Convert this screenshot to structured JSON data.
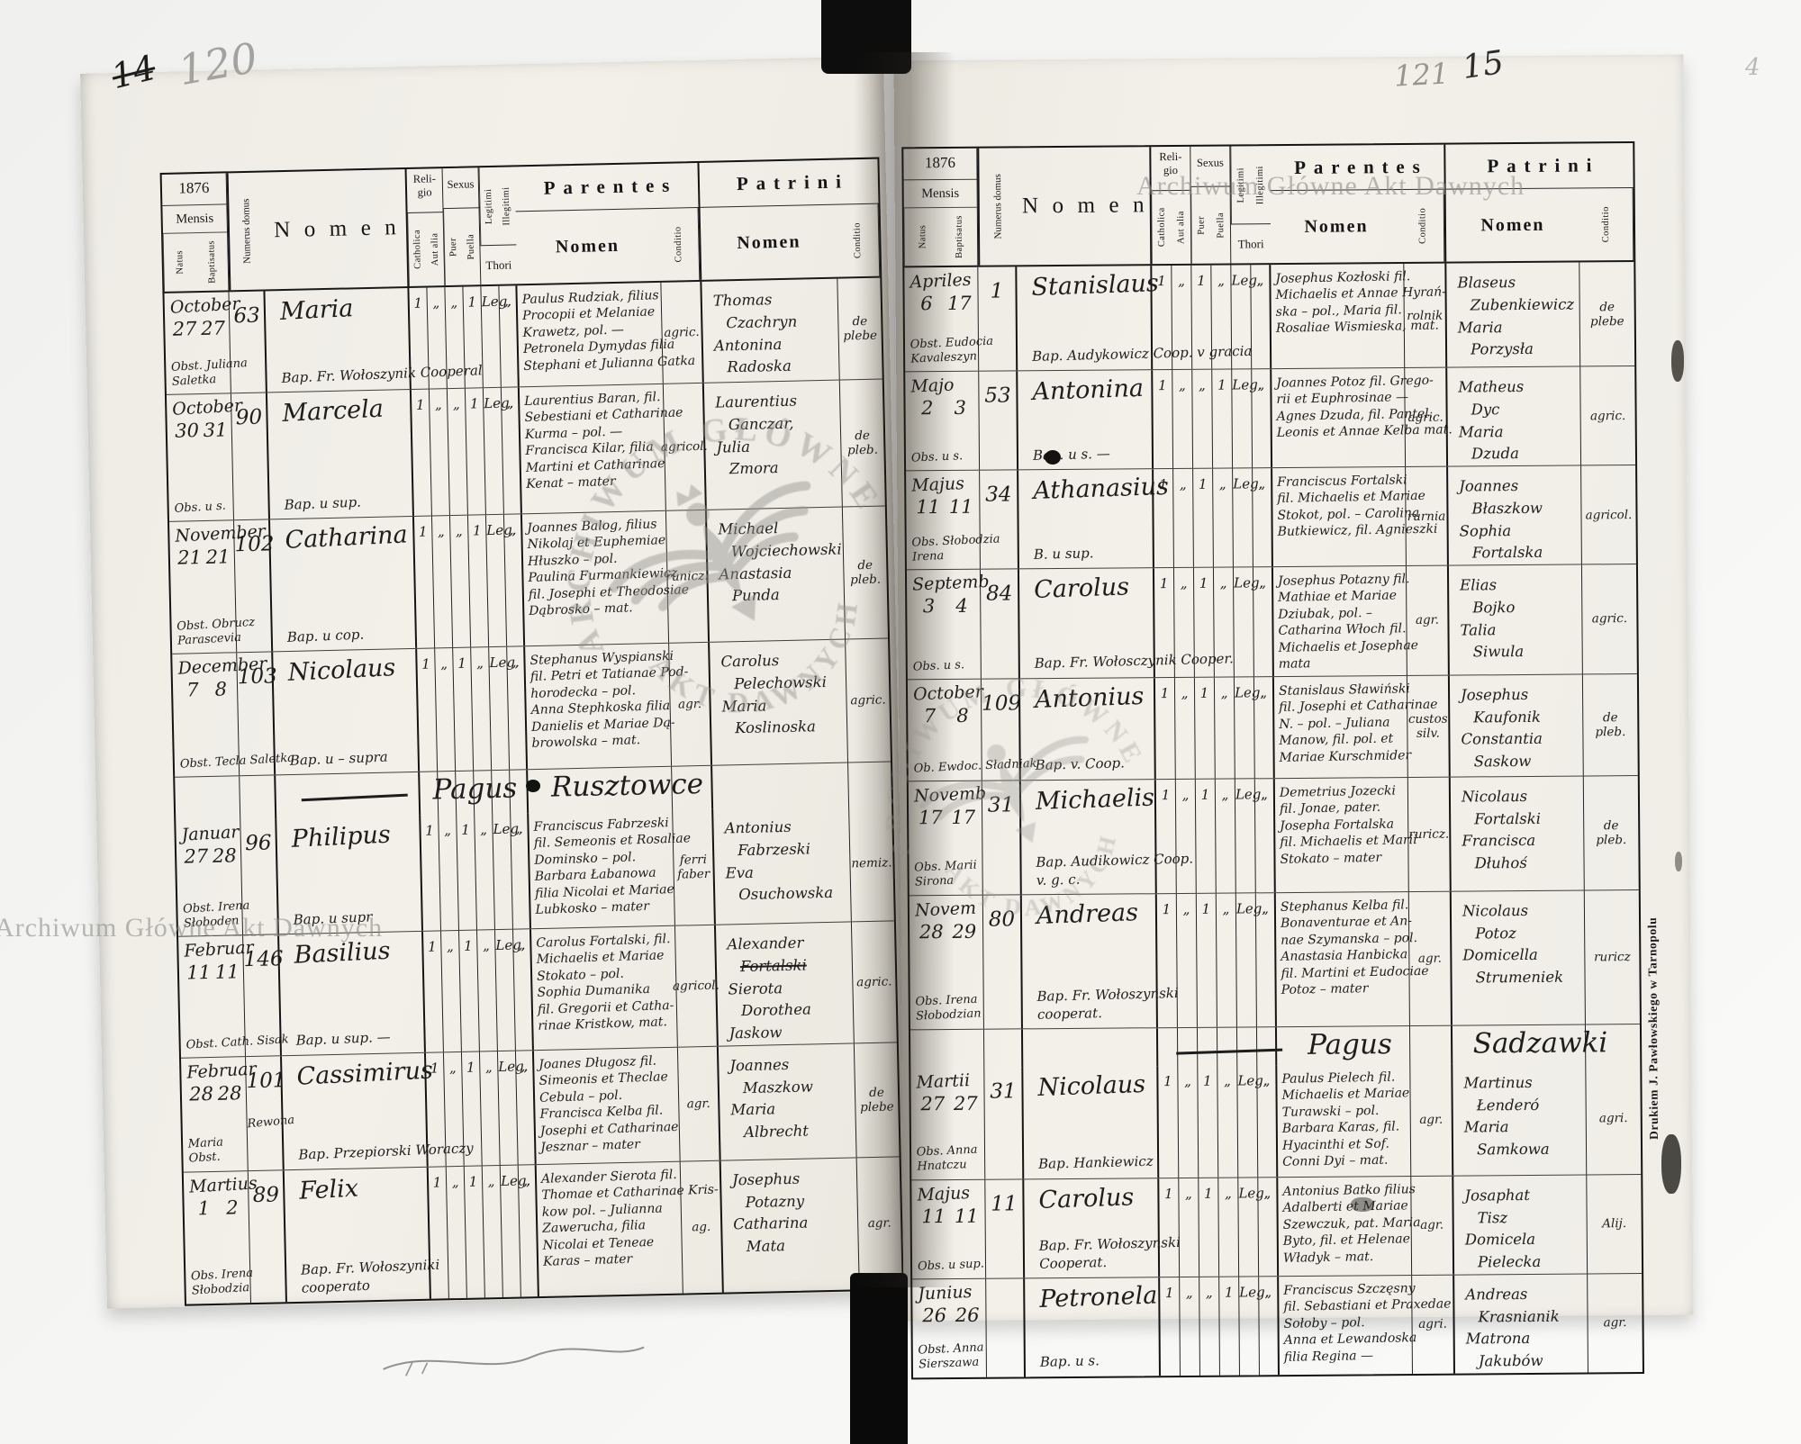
{
  "scan": {
    "archive_watermark": "Archiwum Główne Akt Dawnych",
    "eagle_arc_top": "ARCHIWUM GŁÓWNE",
    "eagle_arc_bottom": "AKT DAWNYCH",
    "printer_imprint": "Drukiem J. Pawłowskiego w Tarnopolu",
    "corner_marks": {
      "left_ink": "14",
      "left_pencil": "120",
      "right_pencil": "121",
      "right_ink": "15",
      "far_right": "4"
    }
  },
  "header_labels": {
    "year": "1876",
    "mensis": "Mensis",
    "natus": "Natus",
    "baptisatus": "Baptisatus",
    "numerus_domus": "Numerus domus",
    "nomen": "Nomen",
    "religio_top": "Reli-",
    "religio_bottom": "gio",
    "catholica": "Catholica",
    "aut_alia": "Aut alia",
    "sexus": "Sexus",
    "puer": "Puer",
    "puella": "Puella",
    "legitimi": "Legitimi",
    "illegitimi": "Illegitimi",
    "thori": "Thori",
    "parentes": "Parentes",
    "patrini": "Patrini",
    "nomen_sub": "Nomen",
    "conditio": "Conditio"
  },
  "left_page": {
    "section": {
      "index": 4,
      "label": "Pagus Rusztowce"
    },
    "rows": [
      {
        "month": "October",
        "natus": "27",
        "baptisatus": "27",
        "midwife": [
          "Obst. Juliana",
          "Saletka"
        ],
        "house_no": "63",
        "house_note": "",
        "name": "Maria",
        "baptizer": [
          "Bap. Fr. Wołoszynik Cooperal"
        ],
        "marks": [
          "1",
          "„",
          "„",
          "1",
          "Leg.",
          "„"
        ],
        "parents": [
          "Paulus Rudziak, filius",
          "Procopii et Melaniae",
          "Krawetz, pol. —",
          "Petronela Dymydas filia",
          "Stephani et Julianna Gatka"
        ],
        "parents_cond": "agric.",
        "godparents": [
          "Thomas",
          "Czachryn",
          "Antonina",
          "Radoska"
        ],
        "godparents_cond": "de\nplebe",
        "struck": -1
      },
      {
        "month": "October",
        "natus": "30",
        "baptisatus": "31",
        "midwife": [
          "Obs. u s."
        ],
        "house_no": "90",
        "house_note": "",
        "name": "Marcela",
        "baptizer": [
          "Bap. u sup."
        ],
        "marks": [
          "1",
          "„",
          "„",
          "1",
          "Leg.",
          "„"
        ],
        "parents": [
          "Laurentius Baran, fil.",
          "Sebestiani et Catharinae",
          "Kurma – pol. —",
          "Francisca Kilar, filia",
          "Martini et Catharinae",
          "Kenat – mater"
        ],
        "parents_cond": "agricol.",
        "godparents": [
          "Laurentius",
          "Ganczar,",
          "Julia",
          "Zmora"
        ],
        "godparents_cond": "de\npleb.",
        "struck": -1
      },
      {
        "month": "November",
        "natus": "21",
        "baptisatus": "21",
        "midwife": [
          "Obst. Obrucz",
          "Parascevia"
        ],
        "house_no": "102",
        "house_note": "",
        "name": "Catharina",
        "baptizer": [
          "Bap. u cop."
        ],
        "marks": [
          "1",
          "„",
          "„",
          "1",
          "Leg.",
          "„"
        ],
        "parents": [
          "Joannes Balog, filius",
          "Nikolaj et Euphemiae",
          "Hłuszko – pol.",
          "Paulina Furmankiewicz",
          "fil. Josephi et Theodosiae",
          "Dąbrosko – mat."
        ],
        "parents_cond": "runicz.",
        "godparents": [
          "Michael",
          "Wojciechowski",
          "Anastasia",
          "Punda"
        ],
        "godparents_cond": "de\npleb.",
        "struck": -1
      },
      {
        "month": "December",
        "natus": "7",
        "baptisatus": "8",
        "midwife": [
          "Obst. Tecla Saletka"
        ],
        "house_no": "103",
        "house_note": "",
        "name": "Nicolaus",
        "baptizer": [
          "Bap. u – supra"
        ],
        "marks": [
          "1",
          "„",
          "1",
          "„",
          "Leg.",
          "„"
        ],
        "parents": [
          "Stephanus Wyspianski",
          "fil. Petri et Tatianae Pod-",
          "horodecka – pol.",
          "Anna Stephkoska filia",
          "Danielis et Mariae Dą-",
          "browolska – mat."
        ],
        "parents_cond": "agr.",
        "godparents": [
          "Carolus",
          "Pelechowski",
          "Maria",
          "Koslinoska"
        ],
        "godparents_cond": "agric.",
        "struck": -1
      },
      {
        "month": "Januar",
        "natus": "27",
        "baptisatus": "28",
        "midwife": [
          "Obst. Irena",
          "Słoboden"
        ],
        "house_no": "96",
        "house_note": "",
        "name": "Philipus",
        "baptizer": [
          "Bap. u supr"
        ],
        "marks": [
          "1",
          "„",
          "1",
          "„",
          "Leg.",
          "„"
        ],
        "parents": [
          "Franciscus Fabrzeski",
          "fil. Semeonis et Rosaliae",
          "Dominsko – pol.",
          "Barbara Łabanowa",
          "filia Nicolai et Mariae",
          "Lubkosko – mater"
        ],
        "parents_cond": "ferri\nfaber",
        "godparents": [
          "Antonius",
          "Fabrzeski",
          "Eva",
          "Osuchowska"
        ],
        "godparents_cond": "nemiz.",
        "struck": -1
      },
      {
        "month": "Februar",
        "natus": "11",
        "baptisatus": "11",
        "midwife": [
          "Obst. Cath. Sisak"
        ],
        "house_no": "146",
        "house_note": "",
        "name": "Basilius",
        "baptizer": [
          "Bap. u sup. —"
        ],
        "marks": [
          "1",
          "„",
          "1",
          "„",
          "Leg.",
          "„"
        ],
        "parents": [
          "Carolus Fortalski, fil.",
          "Michaelis et Mariae",
          "Stokato – pol.",
          "Sophia Dumanika",
          "fil. Gregorii et Catha-",
          "rinae Kristkow, mat."
        ],
        "parents_cond": "agricol.",
        "godparents": [
          "Alexander",
          "Fortalski",
          "Sierota",
          "Dorothea",
          "Jaskow"
        ],
        "godparents_cond": "agric.",
        "struck": 1
      },
      {
        "month": "Februar",
        "natus": "28",
        "baptisatus": "28",
        "midwife": [
          "Maria",
          "Obst."
        ],
        "house_no": "101",
        "house_note": "Rewona",
        "name": "Cassimirus",
        "baptizer": [
          "Bap. Przepiorski Woraczy"
        ],
        "marks": [
          "1",
          "„",
          "1",
          "„",
          "Leg.",
          "„"
        ],
        "parents": [
          "Joanes Długosz fil.",
          "Simeonis et Theclae",
          "Cebula – pol.",
          "Francisca Kelba fil.",
          "Josephi et Catharinae",
          "Jesznar – mater"
        ],
        "parents_cond": "agr.",
        "godparents": [
          "Joannes",
          "Maszkow",
          "Maria",
          "Albrecht"
        ],
        "godparents_cond": "de\nplebe",
        "struck": -1
      },
      {
        "month": "Martius",
        "natus": "1",
        "baptisatus": "2",
        "midwife": [
          "Obs. Irena",
          "Słobodzia"
        ],
        "house_no": "89",
        "house_note": "",
        "name": "Felix",
        "baptizer": [
          "Bap. Fr. Wołoszyniki",
          "cooperato"
        ],
        "marks": [
          "1",
          "„",
          "1",
          "„",
          "Leg.",
          "„"
        ],
        "parents": [
          "Alexander Sierota fil.",
          "Thomae et Catharinae Kris-",
          "kow pol. – Julianna",
          "Zawerucha, filia",
          "Nicolai et Teneae",
          "Karas – mater"
        ],
        "parents_cond": "ag.",
        "godparents": [
          "Josephus",
          "Potazny",
          "Catharina",
          "Mata"
        ],
        "godparents_cond": "agr.",
        "struck": -1
      }
    ]
  },
  "right_page": {
    "section": {
      "index": 7,
      "label": "Pagus Sadzawki"
    },
    "rows": [
      {
        "month": "Apriles",
        "natus": "6",
        "baptisatus": "17",
        "midwife": [
          "Obst. Eudocia",
          "Kavaleszyn"
        ],
        "house_no": "1",
        "house_note": "",
        "name": "Stanislaus",
        "baptizer": [
          "Bap. Audykowicz Coop. v gracia"
        ],
        "marks": [
          "1",
          "„",
          "1",
          "„",
          "Leg.",
          "„"
        ],
        "parents": [
          "Josephus Kozłoski fil.",
          "Michaelis et Annae Hyrań-",
          "ska – pol., Maria fil.",
          "Rosaliae Wismieska, mat."
        ],
        "parents_cond": "rolnik",
        "godparents": [
          "Blaseus",
          "Zubenkiewicz",
          "Maria",
          "Porzysła"
        ],
        "godparents_cond": "de\nplebe",
        "struck": -1
      },
      {
        "month": "Majo",
        "natus": "2",
        "baptisatus": "3",
        "midwife": [
          "Obs. u s."
        ],
        "house_no": "53",
        "house_note": "",
        "name": "Antonina",
        "baptizer": [
          "Bap. u s. —"
        ],
        "marks": [
          "1",
          "„",
          "„",
          "1",
          "Leg.",
          "„"
        ],
        "parents": [
          "Joannes Potoz fil. Grego-",
          "rii et Euphrosinae —",
          "Agnes Dzuda, fil. Pantel.",
          "Leonis et Annae Kelba mat."
        ],
        "parents_cond": "agric.",
        "godparents": [
          "Matheus",
          "Dyc",
          "Maria",
          "Dzuda"
        ],
        "godparents_cond": "agric.",
        "struck": -1
      },
      {
        "month": "Majus",
        "natus": "11",
        "baptisatus": "11",
        "midwife": [
          "Obs. Słobodzia",
          "Irena"
        ],
        "house_no": "34",
        "house_note": "",
        "name": "Athanasius",
        "baptizer": [
          "B. u sup."
        ],
        "marks": [
          "1",
          "„",
          "1",
          "„",
          "Leg.",
          "„"
        ],
        "parents": [
          "Franciscus Fortalski",
          "fil. Michaelis et Mariae",
          "Stokot, pol. – Carolina",
          "Butkiewicz, fil. Agnieszki"
        ],
        "parents_cond": "rurnia",
        "godparents": [
          "Joannes",
          "Błaszkow",
          "Sophia",
          "Fortalska"
        ],
        "godparents_cond": "agricol.",
        "struck": -1
      },
      {
        "month": "Septemb",
        "natus": "3",
        "baptisatus": "4",
        "midwife": [
          "Obs. u s."
        ],
        "house_no": "84",
        "house_note": "",
        "name": "Carolus",
        "baptizer": [
          "Bap. Fr. Wołosczynik Cooper."
        ],
        "marks": [
          "1",
          "„",
          "1",
          "„",
          "Leg.",
          "„"
        ],
        "parents": [
          "Josephus Potazny fil.",
          "Mathiae et Mariae",
          "Dziubak, pol. –",
          "Catharina Włoch fil.",
          "Michaelis et Josephae",
          "mata"
        ],
        "parents_cond": "agr.",
        "godparents": [
          "Elias",
          "Bojko",
          "Talia",
          "Siwula"
        ],
        "godparents_cond": "agric.",
        "struck": -1
      },
      {
        "month": "October",
        "natus": "7",
        "baptisatus": "8",
        "midwife": [
          "Ob. Ewdoc. Sładniak"
        ],
        "house_no": "109",
        "house_note": "",
        "name": "Antonius",
        "baptizer": [
          "Bap. v. Coop."
        ],
        "marks": [
          "1",
          "„",
          "1",
          "„",
          "Leg.",
          "„"
        ],
        "parents": [
          "Stanislaus Sławiński",
          "fil. Josephi et Catharinae",
          "N. – pol. – Juliana",
          "Manow, fil. pol. et",
          "Mariae Kurschmider"
        ],
        "parents_cond": "custos\nsilv.",
        "godparents": [
          "Josephus",
          "Kaufonik",
          "Constantia",
          "Saskow"
        ],
        "godparents_cond": "de\npleb.",
        "struck": -1
      },
      {
        "month": "Novemb",
        "natus": "17",
        "baptisatus": "17",
        "midwife": [
          "Obs. Marii",
          "Sirona"
        ],
        "house_no": "31",
        "house_note": "",
        "name": "Michaelis",
        "baptizer": [
          "Bap. Audikowicz Coop.",
          "v. g. c."
        ],
        "marks": [
          "1",
          "„",
          "1",
          "„",
          "Leg.",
          "„"
        ],
        "parents": [
          "Demetrius Jozecki",
          "fil. Jonae, pater.",
          "Josepha Fortalska",
          "fil. Michaelis et Marii",
          "Stokato – mater"
        ],
        "parents_cond": "ruricz.",
        "godparents": [
          "Nicolaus",
          "Fortalski",
          "Francisca",
          "Dłuhoś"
        ],
        "godparents_cond": "de\npleb.",
        "struck": -1
      },
      {
        "month": "Novem",
        "natus": "28",
        "baptisatus": "29",
        "midwife": [
          "Obs. Irena",
          "Słobodzian"
        ],
        "house_no": "80",
        "house_note": "",
        "name": "Andreas",
        "baptizer": [
          "Bap. Fr. Wołoszynski",
          "cooperat."
        ],
        "marks": [
          "1",
          "„",
          "1",
          "„",
          "Leg.",
          "„"
        ],
        "parents": [
          "Stephanus Kelba fil.",
          "Bonaventurae et An-",
          "nae Szymanska – pol.",
          "Anastasia Hanbicka",
          "fil. Martini et Eudociae",
          "Potoz – mater"
        ],
        "parents_cond": "agr.",
        "godparents": [
          "Nicolaus",
          "Potoz",
          "Domicella",
          "Strumeniek"
        ],
        "godparents_cond": "ruricz",
        "struck": -1
      },
      {
        "month": "Martii",
        "natus": "27",
        "baptisatus": "27",
        "midwife": [
          "Obs. Anna",
          "Hnatczu"
        ],
        "house_no": "31",
        "house_note": "",
        "name": "Nicolaus",
        "baptizer": [
          "Bap. Hankiewicz"
        ],
        "marks": [
          "1",
          "„",
          "1",
          "„",
          "Leg.",
          "„"
        ],
        "parents": [
          "Paulus Pielech fil.",
          "Michaelis et Mariae",
          "Turawski – pol.",
          "Barbara Karas, fil.",
          "Hyacinthi et Sof.",
          "Conni Dyi – mat."
        ],
        "parents_cond": "agr.",
        "godparents": [
          "Martinus",
          "Łenderó",
          "Maria",
          "Samkowa"
        ],
        "godparents_cond": "agri.",
        "struck": -1
      },
      {
        "month": "Majus",
        "natus": "11",
        "baptisatus": "11",
        "midwife": [
          "Obs. u sup."
        ],
        "house_no": "11",
        "house_note": "",
        "name": "Carolus",
        "baptizer": [
          "Bap. Fr. Wołoszynski",
          "Cooperat."
        ],
        "marks": [
          "1",
          "„",
          "1",
          "„",
          "Leg.",
          "„"
        ],
        "parents": [
          "Antonius Batko filius",
          "Adalberti et Mariae",
          "Szewczuk, pat. Maria",
          "Byto, fil. et Helenae",
          "Władyk – mat."
        ],
        "parents_cond": "agr.",
        "godparents": [
          "Josaphat",
          "Tisz",
          "Domicela",
          "Pielecka"
        ],
        "godparents_cond": "Alij.",
        "struck": -1
      },
      {
        "month": "Junius",
        "natus": "26",
        "baptisatus": "26",
        "midwife": [
          "Obst. Anna",
          "Sierszawa"
        ],
        "house_no": "",
        "house_note": "",
        "name": "Petronela",
        "baptizer": [
          "Bap. u s."
        ],
        "marks": [
          "1",
          "„",
          "„",
          "1",
          "Leg.",
          "„"
        ],
        "parents": [
          "Franciscus Szczęsny",
          "fil. Sebastiani et Praxedae",
          "Sołoby – pol.",
          "Anna et Lewandoska",
          "filia Regina —"
        ],
        "parents_cond": "agri.",
        "godparents": [
          "Andreas",
          "Krasnianik",
          "Matrona",
          "Jakubów"
        ],
        "godparents_cond": "agr.",
        "struck": -1
      }
    ]
  }
}
